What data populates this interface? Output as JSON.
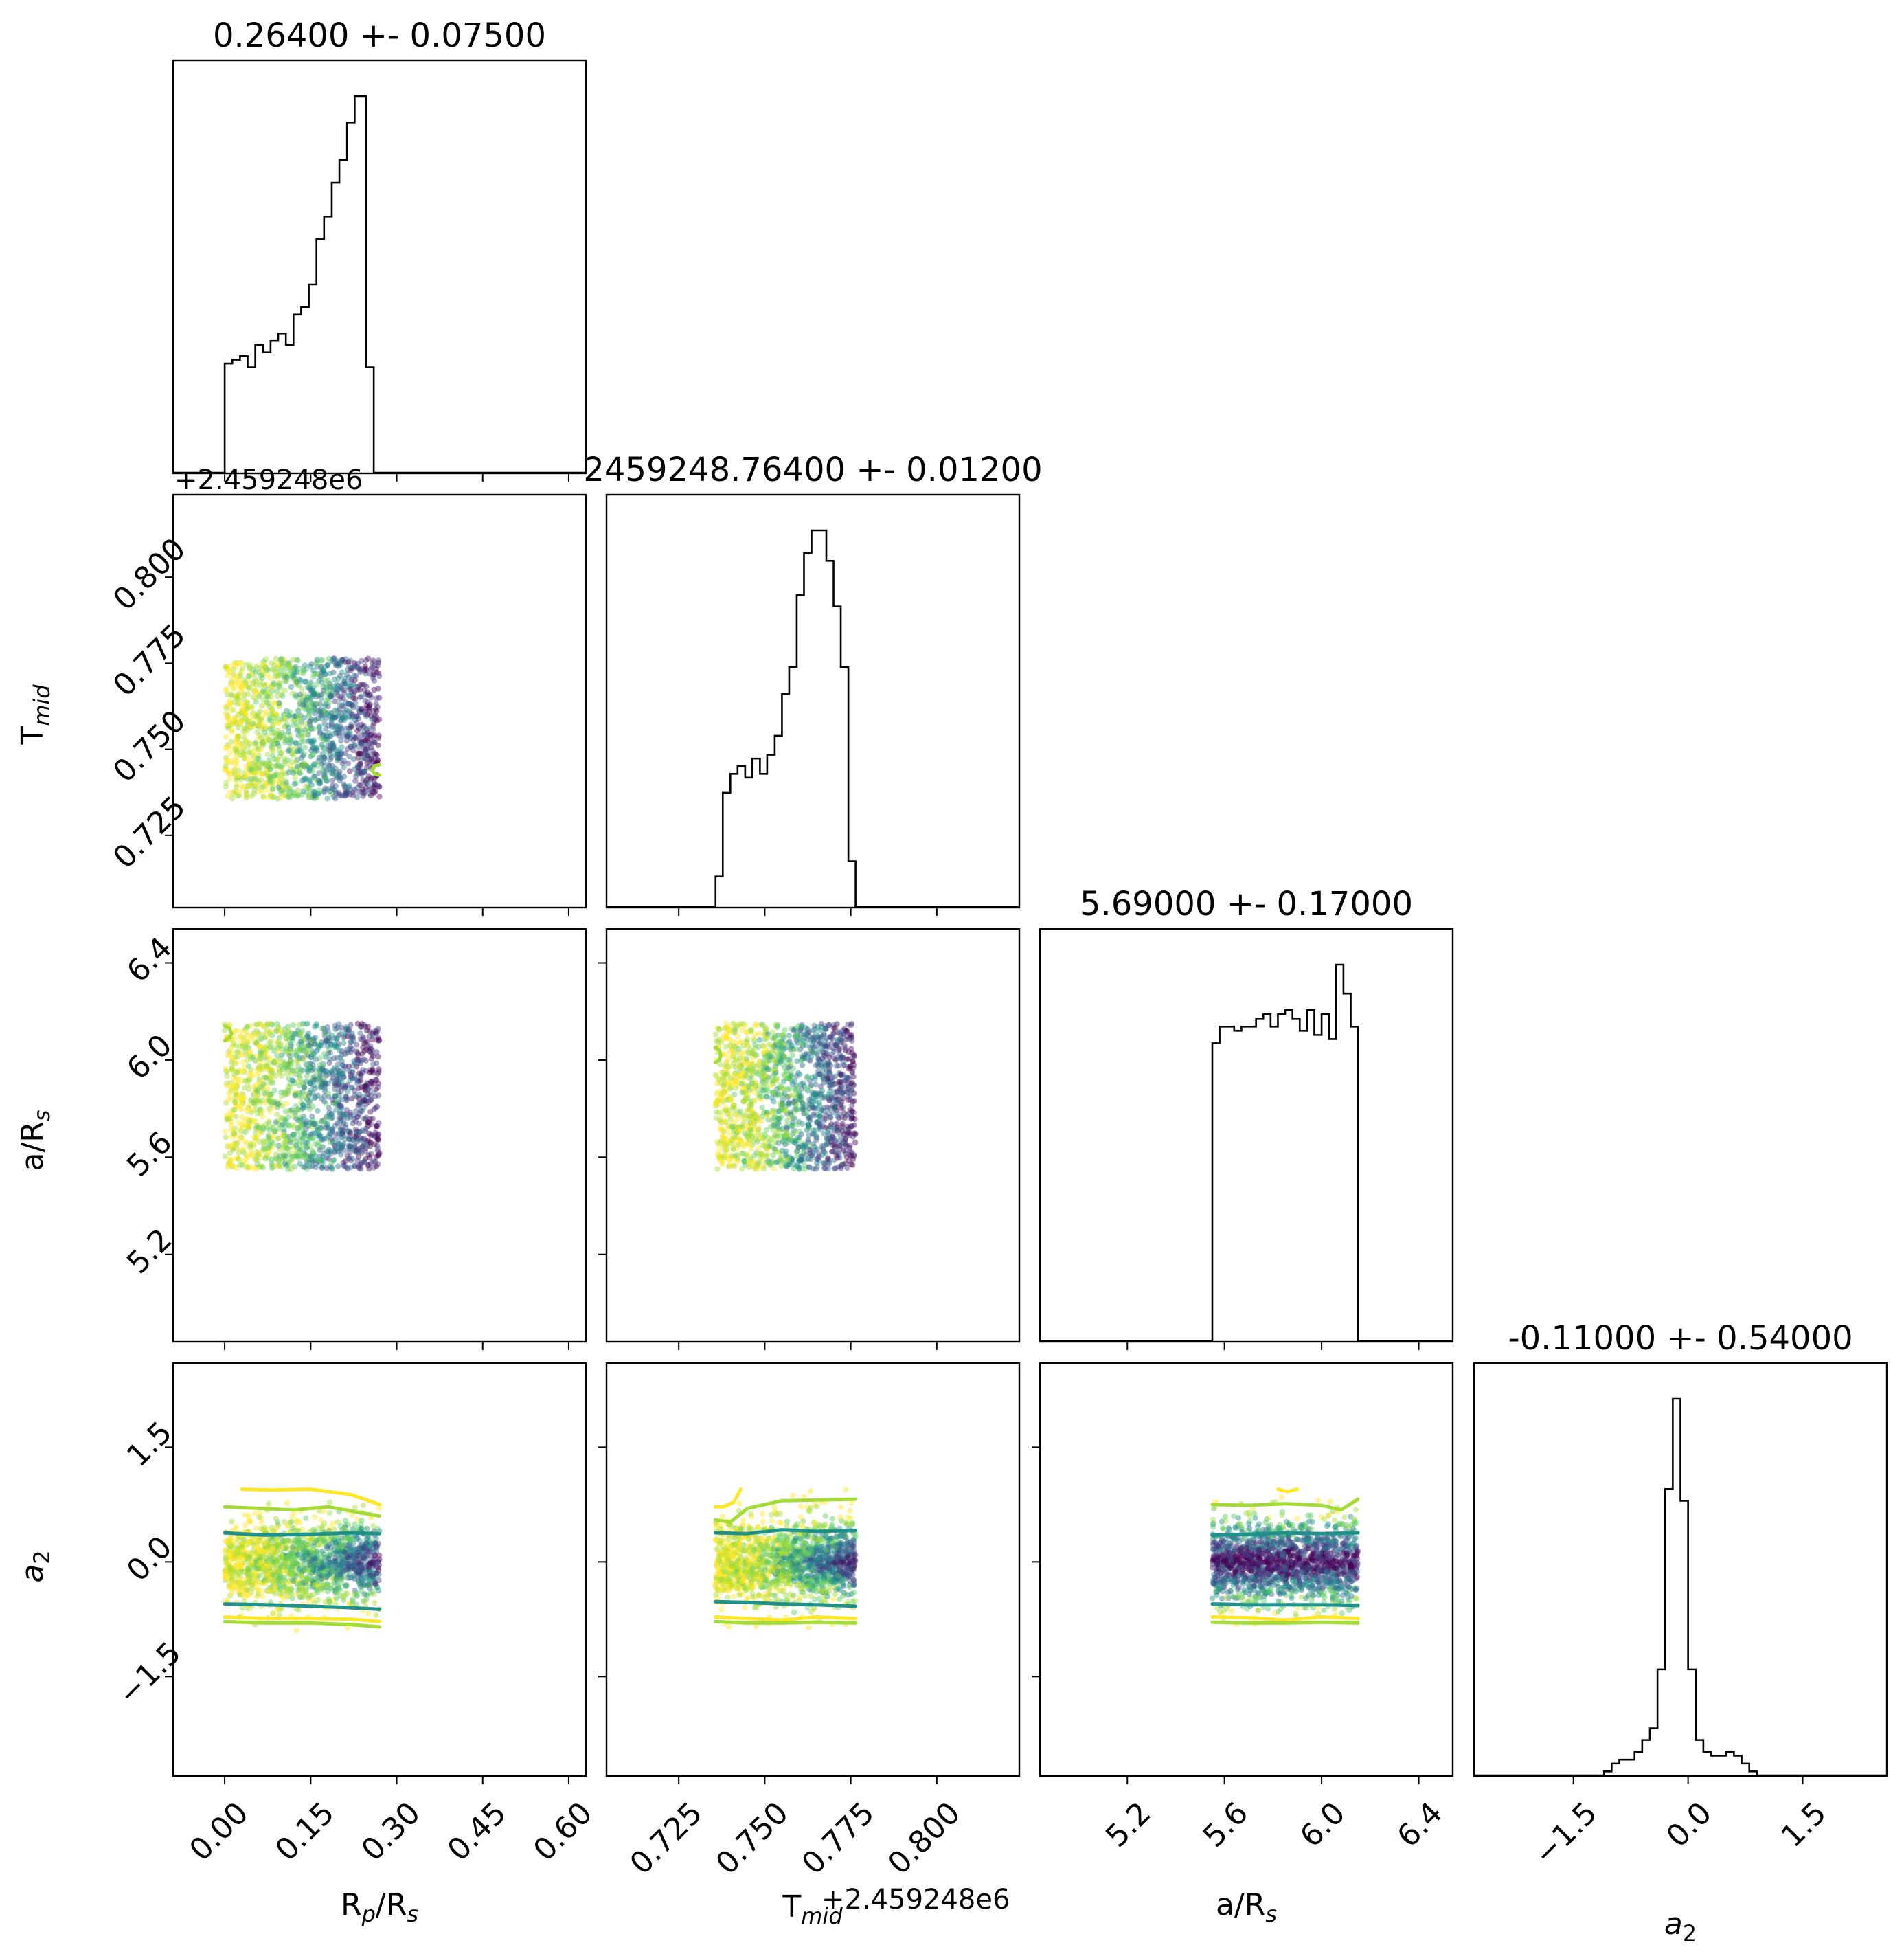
{
  "chart_data": {
    "type": "corner",
    "parameters": [
      {
        "key": "rprs",
        "label": "R_p/R_s",
        "title": "0.26400 +- 0.07500",
        "range": [
          -0.09,
          0.63
        ],
        "ticks": [
          0.0,
          0.15,
          0.3,
          0.45,
          0.6
        ],
        "tick_labels": [
          "0.00",
          "0.15",
          "0.30",
          "0.45",
          "0.60"
        ],
        "offset_label": ""
      },
      {
        "key": "tmid",
        "label": "T_mid",
        "title": "2459248.76400 +- 0.01200",
        "range": [
          0.704,
          0.824
        ],
        "ticks": [
          0.725,
          0.75,
          0.775,
          0.8
        ],
        "tick_labels": [
          "0.725",
          "0.750",
          "0.775",
          "0.800"
        ],
        "offset_label": "+2.459248e6"
      },
      {
        "key": "ars",
        "label": "a/R_s",
        "title": "5.69000 +- 0.17000",
        "range": [
          4.84,
          6.54
        ],
        "ticks": [
          5.2,
          5.6,
          6.0,
          6.4
        ],
        "tick_labels": [
          "5.2",
          "5.6",
          "6.0",
          "6.4"
        ],
        "offset_label": ""
      },
      {
        "key": "a2",
        "label": "a_2",
        "title": "-0.11000 +- 0.54000",
        "range": [
          -2.8,
          2.6
        ],
        "ticks": [
          -1.5,
          0.0,
          1.5
        ],
        "tick_labels": [
          "−1.5",
          "0.0",
          "1.5"
        ],
        "offset_label": ""
      }
    ],
    "histograms": [
      {
        "param": "rprs",
        "bin_edges": [
          0.0,
          0.0067,
          0.0133,
          0.02,
          0.0267,
          0.0333,
          0.04,
          0.0467,
          0.0533,
          0.06,
          0.0667,
          0.0733,
          0.08,
          0.0867,
          0.0933,
          0.1,
          0.1067,
          0.1133,
          0.12,
          0.1267,
          0.1333,
          0.14,
          0.1467,
          0.1533,
          0.16,
          0.1667,
          0.1733,
          0.18,
          0.1867,
          0.1933,
          0.2,
          0.2067,
          0.2133,
          0.22,
          0.2267,
          0.2333,
          0.24,
          0.2467,
          0.2533,
          0.26,
          0.2667,
          0.2733
        ],
        "counts": [
          0.29,
          0.29,
          0.3,
          0.3,
          0.31,
          0.31,
          0.28,
          0.28,
          0.34,
          0.34,
          0.32,
          0.32,
          0.35,
          0.35,
          0.37,
          0.37,
          0.34,
          0.34,
          0.42,
          0.42,
          0.44,
          0.44,
          0.5,
          0.5,
          0.62,
          0.62,
          0.68,
          0.68,
          0.77,
          0.77,
          0.83,
          0.83,
          0.93,
          0.93,
          1.0,
          1.0,
          1.0,
          0.28,
          0.28,
          0.0,
          0.0
        ]
      },
      {
        "param": "tmid",
        "bin_edges": [
          0.7357,
          0.7378,
          0.74,
          0.7421,
          0.7443,
          0.7464,
          0.7486,
          0.7507,
          0.7529,
          0.755,
          0.7571,
          0.7593,
          0.7614,
          0.7636,
          0.7657,
          0.7679,
          0.77,
          0.7721,
          0.7743,
          0.7764
        ],
        "counts": [
          0.08,
          0.3,
          0.35,
          0.37,
          0.34,
          0.39,
          0.35,
          0.4,
          0.45,
          0.56,
          0.63,
          0.82,
          0.93,
          0.99,
          0.99,
          0.91,
          0.79,
          0.63,
          0.12
        ]
      },
      {
        "param": "ars",
        "bin_edges": [
          5.55,
          5.58,
          5.61,
          5.64,
          5.67,
          5.7,
          5.73,
          5.76,
          5.79,
          5.82,
          5.85,
          5.88,
          5.91,
          5.94,
          5.97,
          6.0,
          6.03,
          6.06,
          6.09,
          6.12,
          6.15
        ],
        "counts": [
          0.72,
          0.76,
          0.76,
          0.75,
          0.76,
          0.76,
          0.78,
          0.79,
          0.76,
          0.79,
          0.8,
          0.78,
          0.75,
          0.8,
          0.74,
          0.79,
          0.73,
          0.91,
          0.84,
          0.76
        ]
      },
      {
        "param": "a2",
        "bin_edges": [
          -1.2,
          -1.1,
          -1.0,
          -0.9,
          -0.8,
          -0.7,
          -0.6,
          -0.5,
          -0.4,
          -0.3,
          -0.2,
          -0.1,
          0.0,
          0.1,
          0.2,
          0.3,
          0.4,
          0.5,
          0.6,
          0.7,
          0.8,
          0.9,
          1.0,
          1.1
        ],
        "counts": [
          0.0,
          0.01,
          0.03,
          0.04,
          0.04,
          0.06,
          0.09,
          0.12,
          0.27,
          0.73,
          0.96,
          0.7,
          0.27,
          0.09,
          0.06,
          0.05,
          0.05,
          0.06,
          0.05,
          0.03,
          0.01,
          0.0,
          0.0
        ]
      }
    ],
    "scatter_panels": [
      {
        "x": "rprs",
        "y": "tmid",
        "x_range": [
          0.0,
          0.27
        ],
        "y_range": [
          0.7357,
          0.7764
        ],
        "dense_region": "right",
        "level_contours": [
          {
            "level": 1,
            "path": [
              [
                0.27,
                0.7455
              ],
              [
                0.262,
                0.7452
              ],
              [
                0.257,
                0.744
              ],
              [
                0.262,
                0.7428
              ],
              [
                0.27,
                0.7425
              ]
            ]
          }
        ]
      },
      {
        "x": "rprs",
        "y": "ars",
        "x_range": [
          0.0,
          0.27
        ],
        "y_range": [
          5.55,
          6.15
        ],
        "dense_region": "right",
        "level_contours": [
          {
            "level": 1,
            "path": [
              [
                0.0,
                6.14
              ],
              [
                0.008,
                6.13
              ],
              [
                0.012,
                6.11
              ],
              [
                0.008,
                6.09
              ],
              [
                0.0,
                6.08
              ]
            ]
          }
        ]
      },
      {
        "x": "tmid",
        "y": "ars",
        "x_range": [
          0.7357,
          0.7764
        ],
        "y_range": [
          5.55,
          6.15
        ],
        "dense_region": "right",
        "level_contours": [
          {
            "level": 1,
            "path": [
              [
                0.7357,
                6.05
              ],
              [
                0.7368,
                6.04
              ],
              [
                0.7372,
                6.02
              ],
              [
                0.7368,
                6.0
              ],
              [
                0.7357,
                5.99
              ]
            ]
          }
        ]
      },
      {
        "x": "rprs",
        "y": "a2",
        "x_range": [
          0.0,
          0.27
        ],
        "y_range": [
          -0.95,
          0.95
        ],
        "dense_region": "right",
        "level_contours": [
          {
            "level": 0,
            "path": [
              [
                0.03,
                0.95
              ],
              [
                0.08,
                0.94
              ],
              [
                0.15,
                0.95
              ],
              [
                0.22,
                0.88
              ],
              [
                0.27,
                0.75
              ]
            ]
          },
          {
            "level": 1,
            "path": [
              [
                0.0,
                0.72
              ],
              [
                0.06,
                0.7
              ],
              [
                0.12,
                0.68
              ],
              [
                0.18,
                0.72
              ],
              [
                0.27,
                0.6
              ]
            ]
          },
          {
            "level": 2,
            "path": [
              [
                0.0,
                0.38
              ],
              [
                0.07,
                0.35
              ],
              [
                0.15,
                0.36
              ],
              [
                0.22,
                0.38
              ],
              [
                0.27,
                0.37
              ]
            ]
          },
          {
            "level": 2,
            "path": [
              [
                0.0,
                -0.55
              ],
              [
                0.07,
                -0.56
              ],
              [
                0.15,
                -0.58
              ],
              [
                0.22,
                -0.6
              ],
              [
                0.27,
                -0.62
              ]
            ]
          },
          {
            "level": 0,
            "path": [
              [
                0.0,
                -0.72
              ],
              [
                0.07,
                -0.74
              ],
              [
                0.15,
                -0.74
              ],
              [
                0.22,
                -0.75
              ],
              [
                0.27,
                -0.78
              ]
            ]
          },
          {
            "level": 1,
            "path": [
              [
                0.0,
                -0.78
              ],
              [
                0.07,
                -0.8
              ],
              [
                0.15,
                -0.8
              ],
              [
                0.22,
                -0.82
              ],
              [
                0.27,
                -0.85
              ]
            ]
          }
        ]
      },
      {
        "x": "tmid",
        "y": "a2",
        "x_range": [
          0.7357,
          0.7764
        ],
        "y_range": [
          -0.95,
          0.95
        ],
        "dense_region": "right",
        "level_contours": [
          {
            "level": 0,
            "path": [
              [
                0.7357,
                0.72
              ],
              [
                0.738,
                0.72
              ],
              [
                0.741,
                0.78
              ],
              [
                0.743,
                0.95
              ]
            ]
          },
          {
            "level": 1,
            "path": [
              [
                0.7357,
                0.55
              ],
              [
                0.74,
                0.52
              ],
              [
                0.745,
                0.7
              ],
              [
                0.755,
                0.8
              ],
              [
                0.7764,
                0.82
              ]
            ]
          },
          {
            "level": 2,
            "path": [
              [
                0.7357,
                0.38
              ],
              [
                0.745,
                0.37
              ],
              [
                0.755,
                0.42
              ],
              [
                0.765,
                0.4
              ],
              [
                0.7764,
                0.41
              ]
            ]
          },
          {
            "level": 2,
            "path": [
              [
                0.7357,
                -0.52
              ],
              [
                0.745,
                -0.53
              ],
              [
                0.755,
                -0.55
              ],
              [
                0.765,
                -0.56
              ],
              [
                0.7764,
                -0.58
              ]
            ]
          },
          {
            "level": 0,
            "path": [
              [
                0.7357,
                -0.72
              ],
              [
                0.745,
                -0.74
              ],
              [
                0.755,
                -0.76
              ],
              [
                0.765,
                -0.72
              ],
              [
                0.7764,
                -0.74
              ]
            ]
          },
          {
            "level": 1,
            "path": [
              [
                0.7357,
                -0.78
              ],
              [
                0.745,
                -0.8
              ],
              [
                0.755,
                -0.8
              ],
              [
                0.765,
                -0.79
              ],
              [
                0.7764,
                -0.8
              ]
            ]
          }
        ]
      },
      {
        "x": "ars",
        "y": "a2",
        "x_range": [
          5.55,
          6.15
        ],
        "y_range": [
          -0.95,
          0.95
        ],
        "dense_region": "all",
        "level_contours": [
          {
            "level": 0,
            "path": [
              [
                5.82,
                0.95
              ],
              [
                5.86,
                0.92
              ],
              [
                5.9,
                0.95
              ]
            ]
          },
          {
            "level": 1,
            "path": [
              [
                5.55,
                0.75
              ],
              [
                5.7,
                0.74
              ],
              [
                5.85,
                0.76
              ],
              [
                6.0,
                0.74
              ],
              [
                6.08,
                0.68
              ],
              [
                6.15,
                0.82
              ]
            ]
          },
          {
            "level": 2,
            "path": [
              [
                5.55,
                0.35
              ],
              [
                5.7,
                0.36
              ],
              [
                5.85,
                0.38
              ],
              [
                6.0,
                0.37
              ],
              [
                6.15,
                0.38
              ]
            ]
          },
          {
            "level": 2,
            "path": [
              [
                5.55,
                -0.55
              ],
              [
                5.7,
                -0.56
              ],
              [
                5.85,
                -0.56
              ],
              [
                6.0,
                -0.56
              ],
              [
                6.15,
                -0.57
              ]
            ]
          },
          {
            "level": 0,
            "path": [
              [
                5.55,
                -0.72
              ],
              [
                5.7,
                -0.73
              ],
              [
                5.85,
                -0.76
              ],
              [
                6.0,
                -0.72
              ],
              [
                6.15,
                -0.74
              ]
            ]
          },
          {
            "level": 1,
            "path": [
              [
                5.55,
                -0.79
              ],
              [
                5.7,
                -0.8
              ],
              [
                5.85,
                -0.8
              ],
              [
                6.0,
                -0.79
              ],
              [
                6.15,
                -0.8
              ]
            ]
          }
        ]
      }
    ],
    "colors": {
      "frame": "#000000",
      "hist": "#000000",
      "levels": [
        "#fde725",
        "#a5db36",
        "#21918c"
      ],
      "density_ramp": [
        "#fde725",
        "#a5db36",
        "#5ec962",
        "#21918c",
        "#31688e",
        "#443983",
        "#440154"
      ]
    },
    "grid": false,
    "legend": "none"
  }
}
